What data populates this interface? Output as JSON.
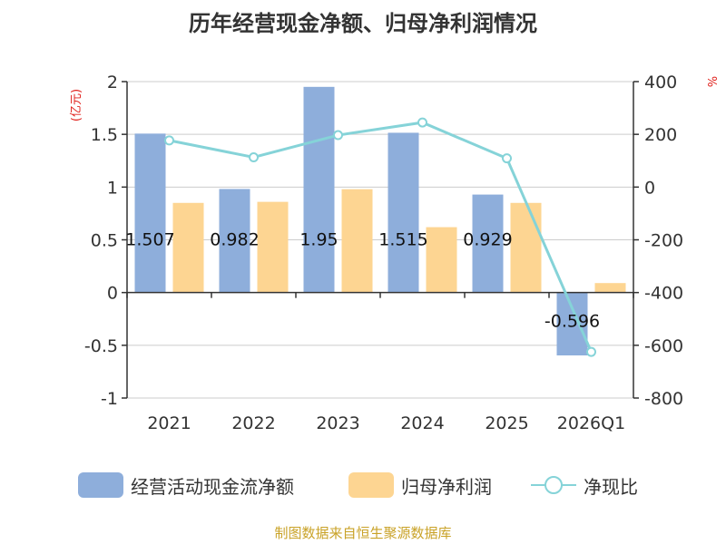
{
  "chart_data": {
    "type": "bar",
    "title": "历年经营现金净额、归母净利润情况",
    "categories": [
      "2021",
      "2022",
      "2023",
      "2024",
      "2025",
      "2026Q1"
    ],
    "left_axis": {
      "unit": "(亿元)",
      "ylim": [
        -1,
        2
      ],
      "ticks": [
        2,
        1.5,
        1,
        0.5,
        0,
        -0.5,
        -1
      ],
      "tick_labels": [
        "2",
        "1.5",
        "1",
        "0.5",
        "0",
        "-0.5",
        "-1"
      ]
    },
    "right_axis": {
      "unit": "%",
      "ylim": [
        -800,
        400
      ],
      "ticks": [
        400,
        200,
        0,
        -200,
        -400,
        -600,
        -800
      ],
      "tick_labels": [
        "400",
        "200",
        "0",
        "-200",
        "-400",
        "-600",
        "-800"
      ]
    },
    "series": [
      {
        "name": "经营活动现金流净额",
        "type": "bar",
        "axis": "left",
        "color": "#8eaedb",
        "values": [
          1.507,
          0.982,
          1.95,
          1.515,
          0.929,
          -0.596
        ],
        "labels": [
          "1.507",
          "0.982",
          "1.95",
          "1.515",
          "0.929",
          "-0.596"
        ]
      },
      {
        "name": "归母净利润",
        "type": "bar",
        "axis": "left",
        "color": "#fdd592",
        "values": [
          0.85,
          0.86,
          0.98,
          0.62,
          0.85,
          0.09
        ]
      },
      {
        "name": "净现比",
        "type": "line",
        "axis": "right",
        "color": "#85d3d8",
        "values": [
          177,
          113,
          197,
          245,
          109,
          -625
        ]
      }
    ],
    "grid": true,
    "legend": "bottom"
  },
  "footer": {
    "source": "制图数据来自恒生聚源数据库"
  }
}
